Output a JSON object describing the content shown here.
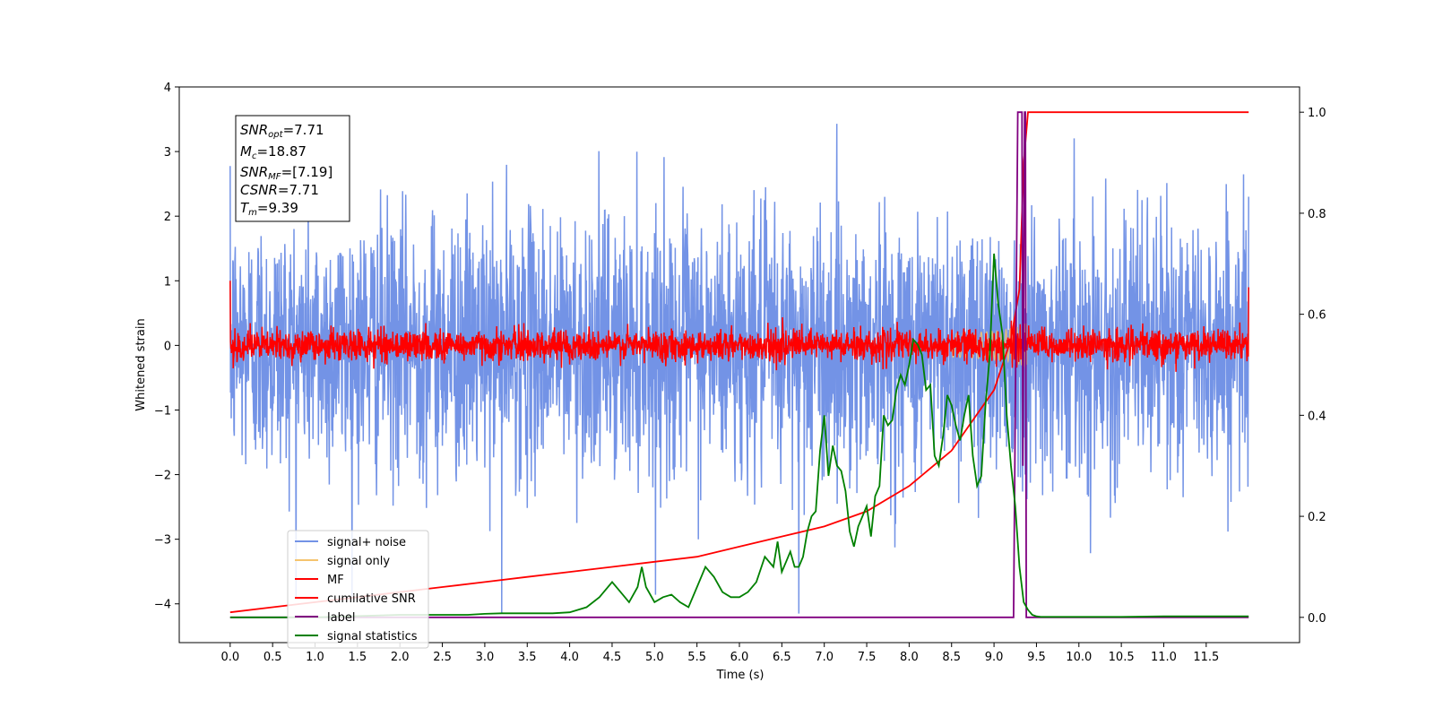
{
  "chart_data": {
    "type": "line",
    "xlabel": "Time (s)",
    "ylabel": "Whitened strain",
    "xlim": [
      -0.6,
      12.6
    ],
    "ylim": [
      -4.6,
      4.0
    ],
    "y2lim": [
      -0.05,
      1.05
    ],
    "x_ticks": [
      "0.0",
      "0.5",
      "1.0",
      "1.5",
      "2.0",
      "2.5",
      "3.0",
      "3.5",
      "4.0",
      "4.5",
      "5.0",
      "5.5",
      "6.0",
      "6.5",
      "7.0",
      "7.5",
      "8.0",
      "8.5",
      "9.0",
      "9.5",
      "10.0",
      "10.5",
      "11.0",
      "11.5"
    ],
    "y_ticks": [
      "4",
      "3",
      "2",
      "1",
      "0",
      "−1",
      "−2",
      "−3",
      "−4"
    ],
    "y2_ticks": [
      "1.0",
      "0.8",
      "0.6",
      "0.4",
      "0.2",
      "0.0"
    ],
    "info_box": {
      "snr_opt": {
        "main": "SNR",
        "sub": "opt",
        "value": "=7.71"
      },
      "mc": {
        "main": "M",
        "sub": "c",
        "value": "=18.87"
      },
      "snr_mf": {
        "main": "SNR",
        "sub": "MF",
        "value": "=[7.19]"
      },
      "csnr": {
        "main": "CSNR",
        "sub": "",
        "value": "=7.71"
      },
      "tm": {
        "main": "T",
        "sub": "m",
        "value": "=9.39"
      }
    },
    "legend_position": "lower-left",
    "series": [
      {
        "name": "signal+ noise",
        "color": "#7393e6",
        "description_values": {
          "amplitude_std": 1.0,
          "max": 3.6,
          "min": -4.15
        }
      },
      {
        "name": "signal only",
        "color": "#f5c46e",
        "chirp_end": 9.39
      },
      {
        "name": "MF",
        "color": "#ff0000",
        "amplitude_std": 0.12,
        "start_value": 1.0,
        "end_value": 0.9
      },
      {
        "name": "cumilative SNR",
        "color": "#ff0000",
        "axis": "right",
        "x": [
          0.0,
          0.5,
          1.0,
          1.5,
          2.0,
          2.5,
          3.0,
          3.5,
          4.0,
          4.5,
          5.0,
          5.5,
          6.0,
          6.5,
          7.0,
          7.5,
          8.0,
          8.5,
          9.0,
          9.2,
          9.3,
          9.35,
          9.4,
          12.0
        ],
        "values": [
          0.01,
          0.02,
          0.03,
          0.04,
          0.05,
          0.06,
          0.07,
          0.08,
          0.09,
          0.1,
          0.11,
          0.12,
          0.14,
          0.16,
          0.18,
          0.21,
          0.26,
          0.33,
          0.45,
          0.55,
          0.65,
          0.9,
          1.0,
          1.0
        ]
      },
      {
        "name": "label",
        "color": "#800080",
        "axis": "right",
        "x": [
          0.0,
          9.23,
          9.28,
          9.33,
          9.34,
          9.36,
          9.37,
          9.38,
          9.42,
          12.0
        ],
        "values": [
          0,
          0,
          1,
          1,
          0.3,
          1,
          1,
          0,
          0,
          0
        ]
      },
      {
        "name": "signal statistics",
        "color": "#008000",
        "axis": "right",
        "x": [
          0.0,
          1.0,
          2.0,
          2.8,
          3.0,
          3.2,
          3.4,
          3.6,
          3.8,
          4.0,
          4.2,
          4.35,
          4.5,
          4.6,
          4.7,
          4.8,
          4.85,
          4.9,
          5.0,
          5.1,
          5.2,
          5.3,
          5.4,
          5.5,
          5.6,
          5.7,
          5.8,
          5.9,
          6.0,
          6.1,
          6.2,
          6.3,
          6.4,
          6.45,
          6.5,
          6.55,
          6.6,
          6.65,
          6.7,
          6.75,
          6.8,
          6.85,
          6.9,
          6.95,
          7.0,
          7.05,
          7.1,
          7.15,
          7.2,
          7.25,
          7.3,
          7.35,
          7.4,
          7.45,
          7.5,
          7.55,
          7.6,
          7.65,
          7.7,
          7.75,
          7.8,
          7.85,
          7.9,
          7.95,
          8.0,
          8.05,
          8.1,
          8.15,
          8.2,
          8.25,
          8.3,
          8.35,
          8.4,
          8.45,
          8.5,
          8.55,
          8.6,
          8.65,
          8.7,
          8.75,
          8.8,
          8.85,
          8.9,
          8.95,
          9.0,
          9.05,
          9.1,
          9.15,
          9.2,
          9.25,
          9.3,
          9.35,
          9.4,
          9.45,
          9.5,
          9.55,
          9.6,
          9.7,
          9.8,
          10.0,
          10.5,
          11.0,
          11.5,
          12.0
        ],
        "values": [
          0.0,
          0.0,
          0.005,
          0.005,
          0.007,
          0.008,
          0.008,
          0.008,
          0.008,
          0.01,
          0.02,
          0.04,
          0.07,
          0.05,
          0.03,
          0.06,
          0.1,
          0.06,
          0.03,
          0.04,
          0.045,
          0.03,
          0.02,
          0.06,
          0.1,
          0.08,
          0.05,
          0.04,
          0.04,
          0.05,
          0.07,
          0.12,
          0.1,
          0.15,
          0.09,
          0.11,
          0.13,
          0.1,
          0.1,
          0.12,
          0.17,
          0.2,
          0.21,
          0.33,
          0.4,
          0.28,
          0.34,
          0.3,
          0.29,
          0.25,
          0.17,
          0.14,
          0.18,
          0.2,
          0.22,
          0.16,
          0.24,
          0.26,
          0.4,
          0.38,
          0.39,
          0.45,
          0.48,
          0.46,
          0.5,
          0.55,
          0.54,
          0.52,
          0.45,
          0.46,
          0.32,
          0.3,
          0.36,
          0.44,
          0.42,
          0.38,
          0.35,
          0.4,
          0.44,
          0.32,
          0.26,
          0.28,
          0.42,
          0.52,
          0.72,
          0.62,
          0.56,
          0.4,
          0.3,
          0.22,
          0.1,
          0.03,
          0.015,
          0.005,
          0.002,
          0.001,
          0.001,
          0.001,
          0.001,
          0.001,
          0.001,
          0.002,
          0.002,
          0.002
        ]
      }
    ]
  }
}
